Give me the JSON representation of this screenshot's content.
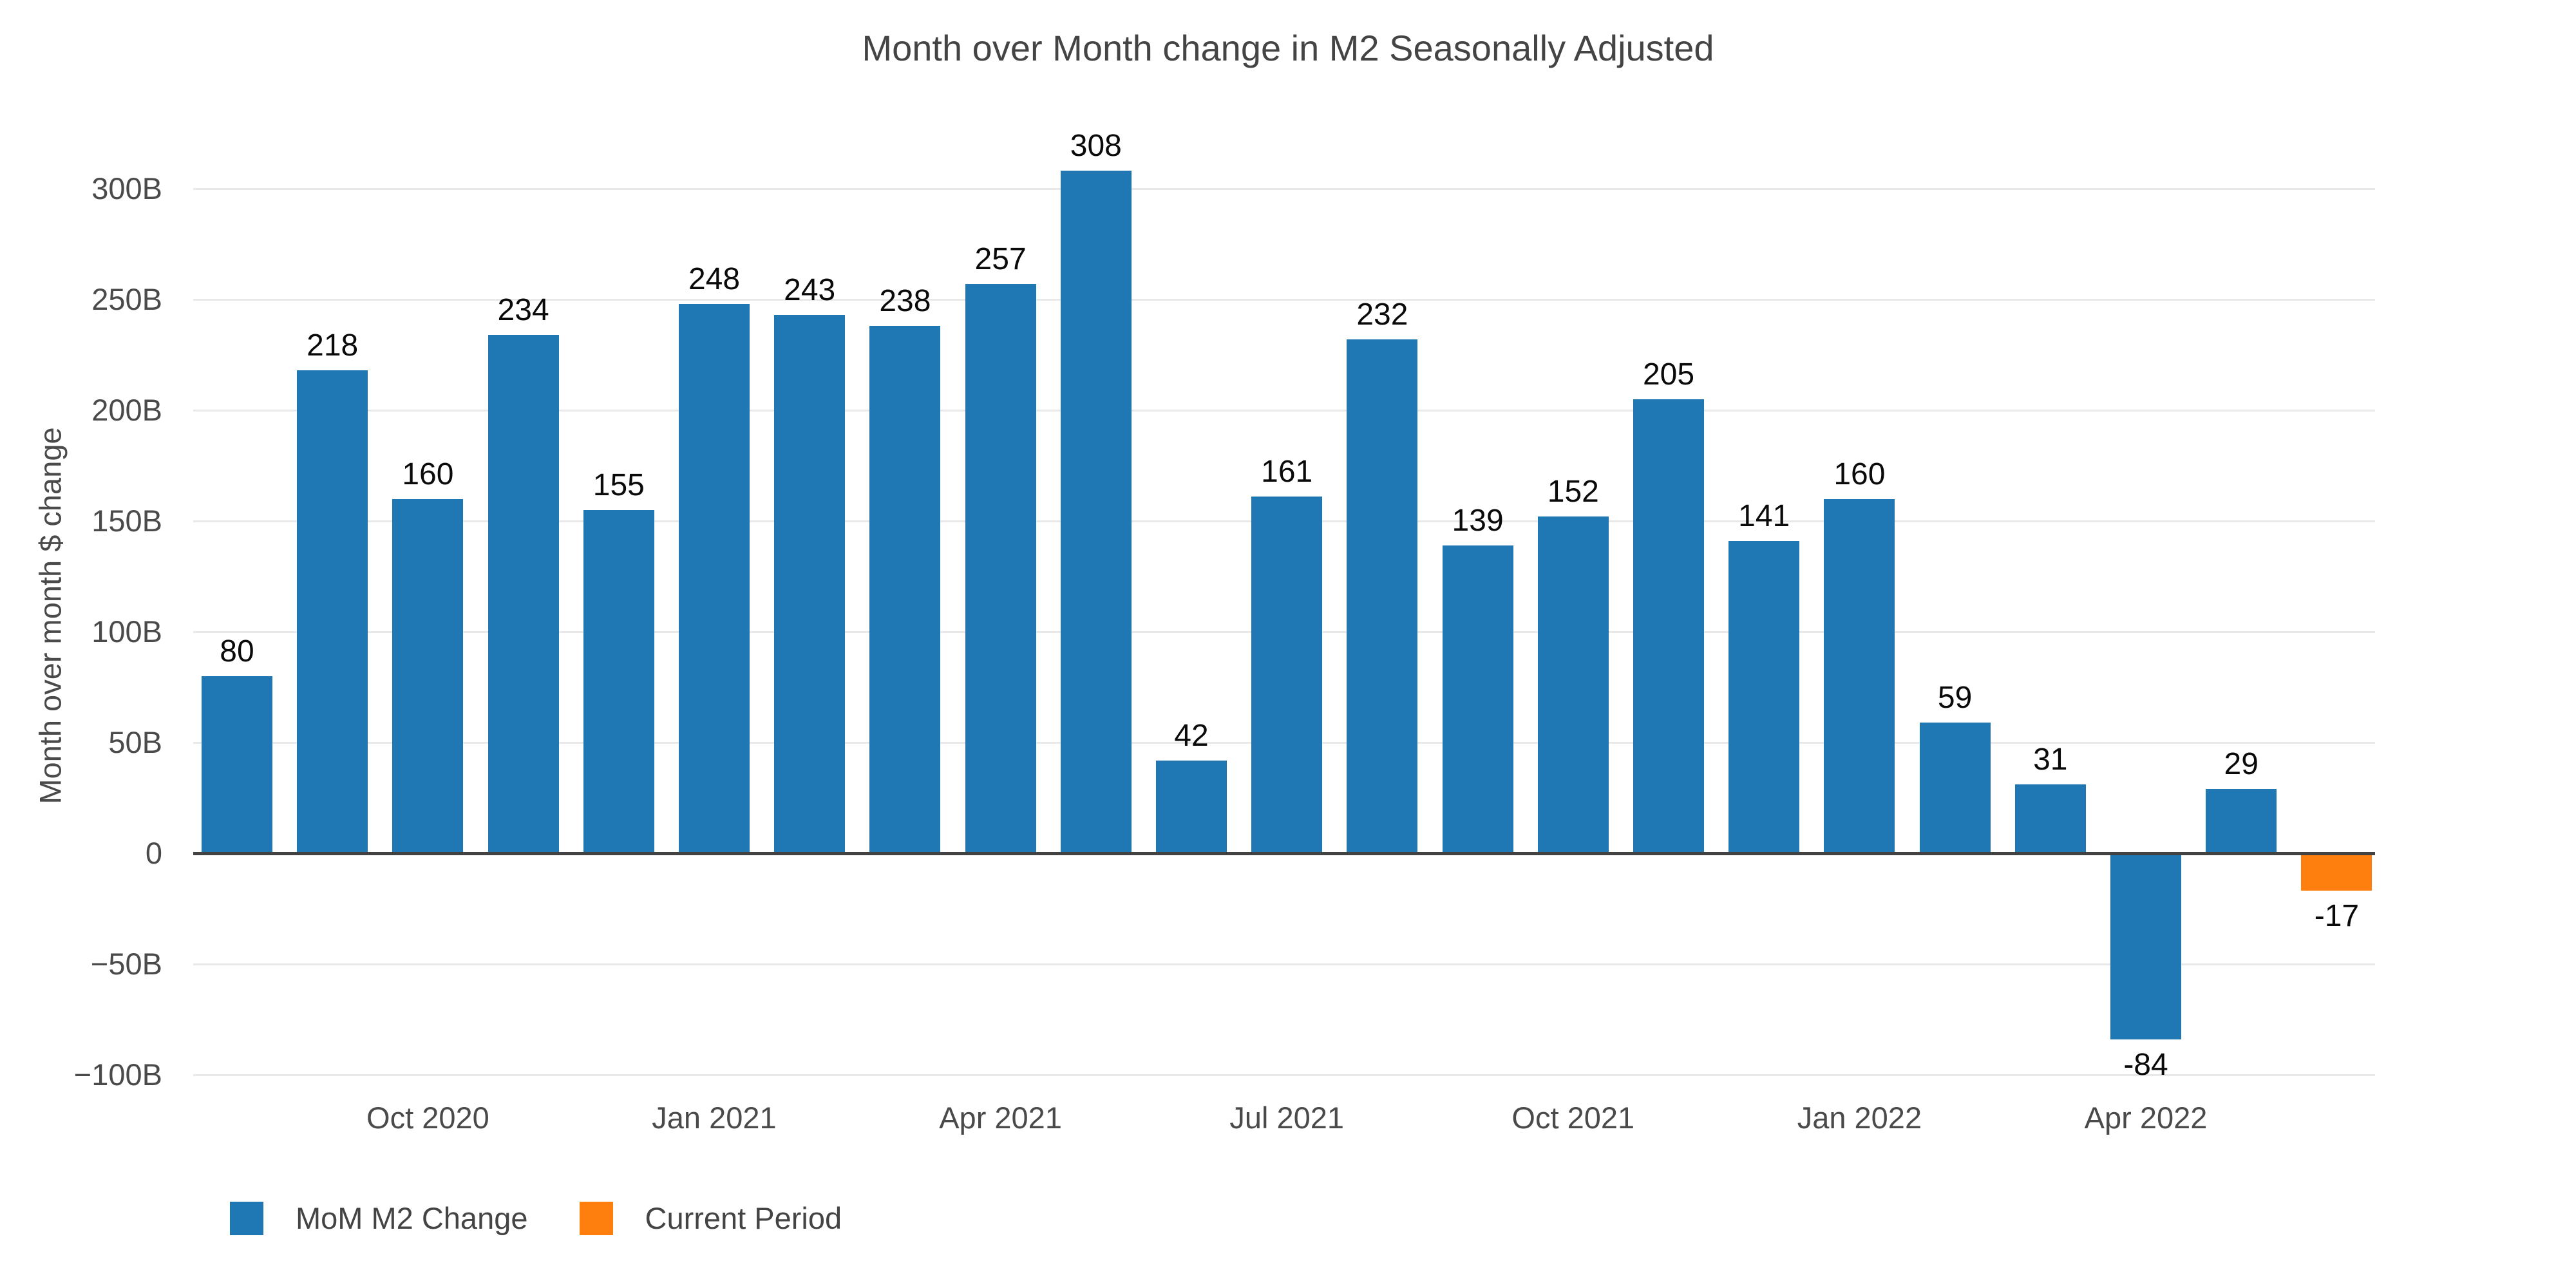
{
  "page": {
    "background_color": "#ffffff"
  },
  "chart_data": {
    "type": "bar",
    "title": "Month over Month change in M2 Seasonally Adjusted",
    "xlabel": "",
    "ylabel": "Month over month $ change",
    "ylim": [
      -100,
      300
    ],
    "grid": true,
    "legend_position": "bottom-left",
    "value_unit": "B",
    "y_ticks": [
      {
        "value": 300,
        "label": "300B"
      },
      {
        "value": 250,
        "label": "250B"
      },
      {
        "value": 200,
        "label": "200B"
      },
      {
        "value": 150,
        "label": "150B"
      },
      {
        "value": 100,
        "label": "100B"
      },
      {
        "value": 50,
        "label": "50B"
      },
      {
        "value": 0,
        "label": "0"
      },
      {
        "value": -50,
        "label": "−50B"
      },
      {
        "value": -100,
        "label": "−100B"
      }
    ],
    "x_ticks": [
      {
        "bar_index": 2,
        "label": "Oct 2020"
      },
      {
        "bar_index": 5,
        "label": "Jan 2021"
      },
      {
        "bar_index": 8,
        "label": "Apr 2021"
      },
      {
        "bar_index": 11,
        "label": "Jul 2021"
      },
      {
        "bar_index": 14,
        "label": "Oct 2021"
      },
      {
        "bar_index": 17,
        "label": "Jan 2022"
      },
      {
        "bar_index": 20,
        "label": "Apr 2022"
      }
    ],
    "series": [
      {
        "name": "MoM M2 Change",
        "color": "#1f77b4"
      },
      {
        "name": "Current Period",
        "color": "#ff7f0e"
      }
    ],
    "bars": [
      {
        "value": 80,
        "label": "80",
        "series": 0
      },
      {
        "value": 218,
        "label": "218",
        "series": 0
      },
      {
        "value": 160,
        "label": "160",
        "series": 0
      },
      {
        "value": 234,
        "label": "234",
        "series": 0
      },
      {
        "value": 155,
        "label": "155",
        "series": 0
      },
      {
        "value": 248,
        "label": "248",
        "series": 0
      },
      {
        "value": 243,
        "label": "243",
        "series": 0
      },
      {
        "value": 238,
        "label": "238",
        "series": 0
      },
      {
        "value": 257,
        "label": "257",
        "series": 0
      },
      {
        "value": 308,
        "label": "308",
        "series": 0
      },
      {
        "value": 42,
        "label": "42",
        "series": 0
      },
      {
        "value": 161,
        "label": "161",
        "series": 0
      },
      {
        "value": 232,
        "label": "232",
        "series": 0
      },
      {
        "value": 139,
        "label": "139",
        "series": 0
      },
      {
        "value": 152,
        "label": "152",
        "series": 0
      },
      {
        "value": 205,
        "label": "205",
        "series": 0
      },
      {
        "value": 141,
        "label": "141",
        "series": 0
      },
      {
        "value": 160,
        "label": "160",
        "series": 0
      },
      {
        "value": 59,
        "label": "59",
        "series": 0
      },
      {
        "value": 31,
        "label": "31",
        "series": 0
      },
      {
        "value": -84,
        "label": "-84",
        "series": 0
      },
      {
        "value": 29,
        "label": "29",
        "series": 0
      },
      {
        "value": -17,
        "label": "-17",
        "series": 1
      }
    ],
    "colors": {
      "gridline": "#e9e9e9",
      "zero_line": "#424242",
      "tick_text": "#4a4a4a",
      "title_text": "#444444",
      "bar_label_text": "#0a0a0a"
    }
  }
}
